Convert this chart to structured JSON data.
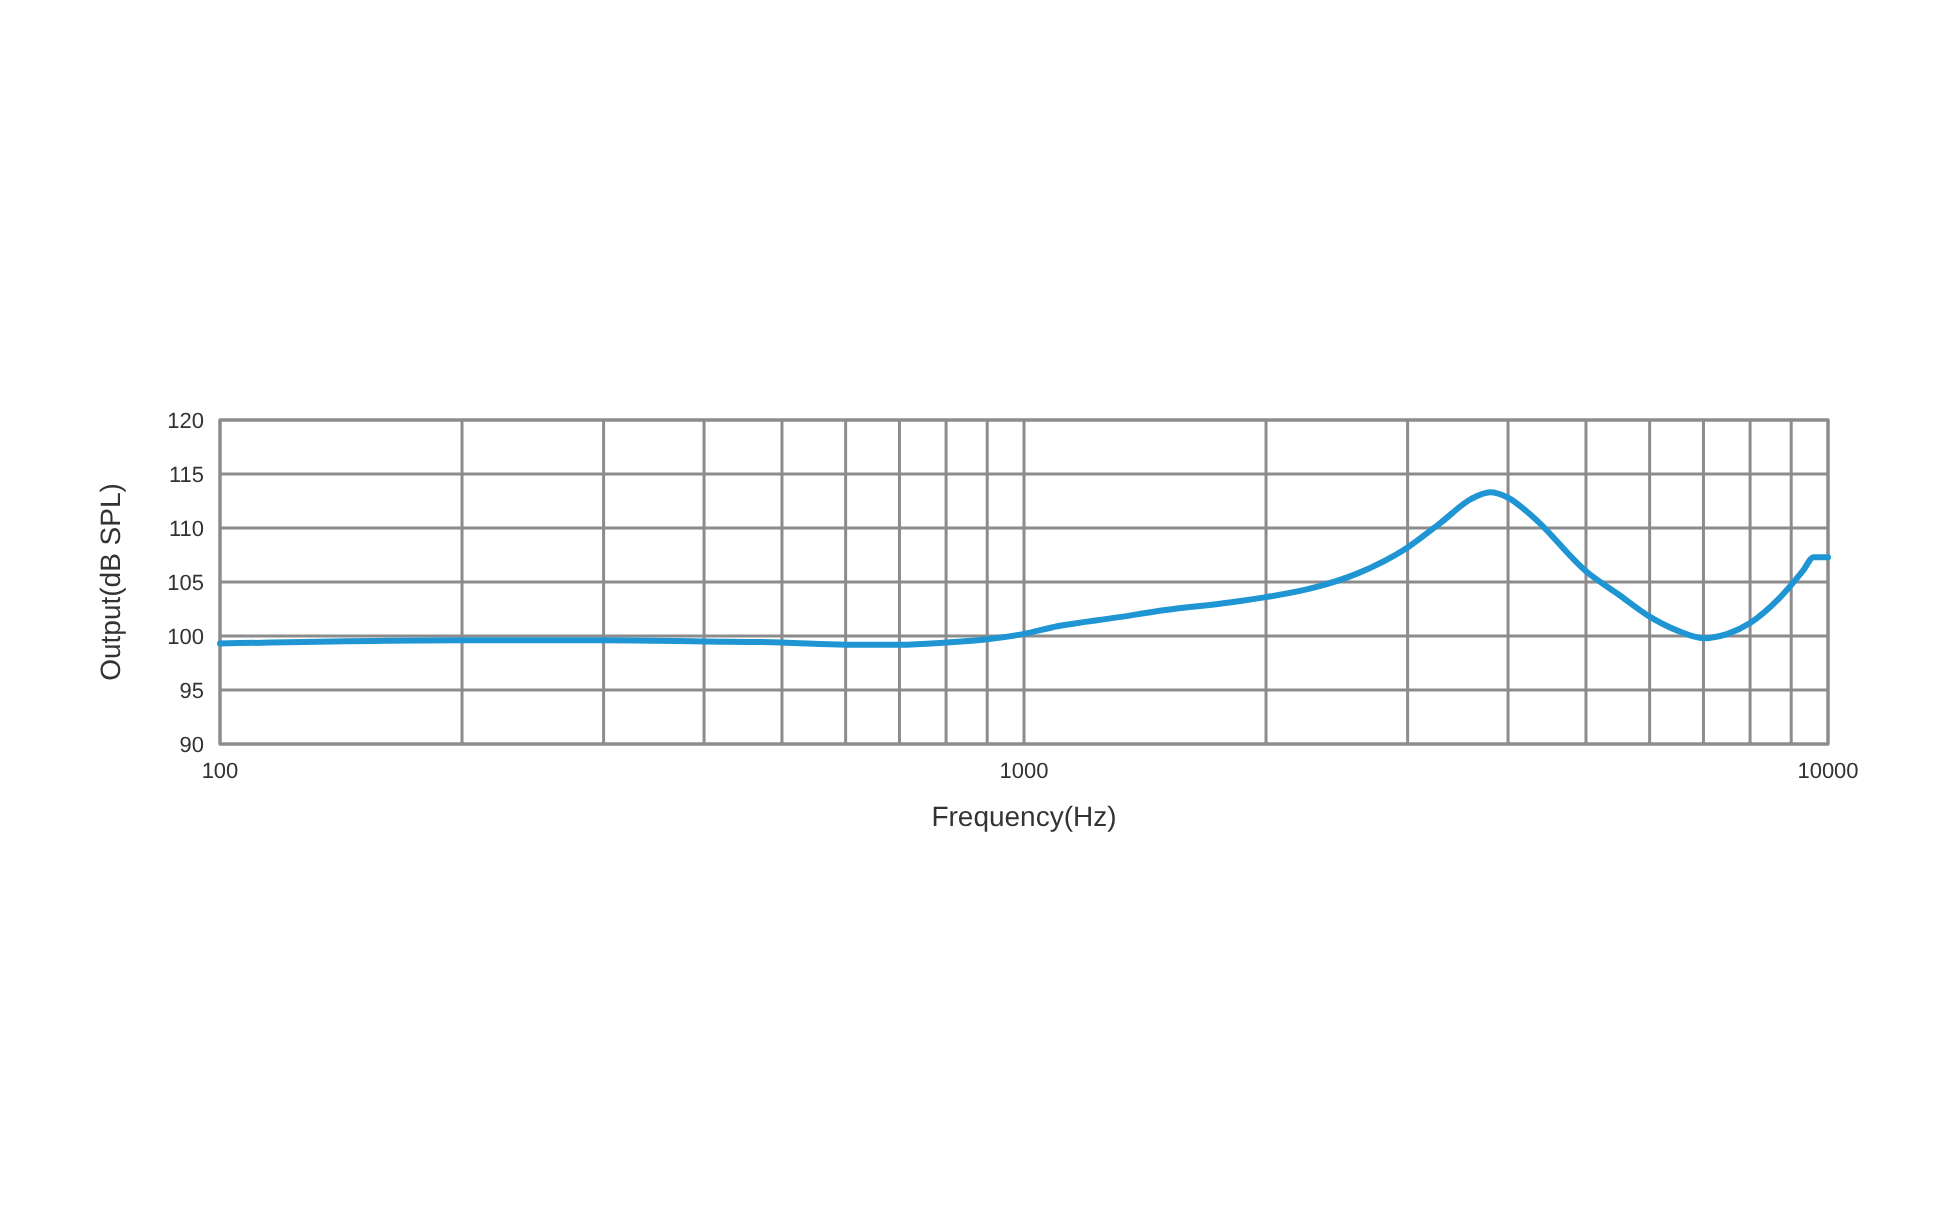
{
  "chart_data": {
    "type": "line",
    "xlabel": "Frequency(Hz)",
    "ylabel": "Output(dB SPL)",
    "log": "x",
    "grid": true,
    "marker": "none",
    "line_style": "solid",
    "xlim": [
      100,
      10000
    ],
    "ylim": [
      90,
      120
    ],
    "xticks": [
      100,
      {
        "value": 200,
        "label": null
      },
      {
        "value": 300,
        "label": null
      },
      {
        "value": 400,
        "label": null
      },
      {
        "value": 500,
        "label": null
      },
      {
        "value": 600,
        "label": null
      },
      {
        "value": 700,
        "label": null
      },
      {
        "value": 800,
        "label": null
      },
      {
        "value": 900,
        "label": null
      },
      1000,
      {
        "value": 2000,
        "label": null
      },
      {
        "value": 3000,
        "label": null
      },
      {
        "value": 4000,
        "label": null
      },
      {
        "value": 5000,
        "label": null
      },
      {
        "value": 6000,
        "label": null
      },
      {
        "value": 7000,
        "label": null
      },
      {
        "value": 8000,
        "label": null
      },
      {
        "value": 9000,
        "label": null
      },
      10000
    ],
    "yticks": [
      90,
      95,
      100,
      105,
      110,
      115,
      120
    ],
    "x": [
      100,
      200,
      300,
      400,
      500,
      600,
      700,
      800,
      900,
      1000,
      1100,
      1300,
      1500,
      1800,
      2000,
      2300,
      2600,
      3000,
      3300,
      3600,
      3800,
      4000,
      4300,
      5000,
      5500,
      6000,
      6500,
      7000,
      7500,
      8000,
      8700,
      9300,
      9600,
      10000
    ],
    "series": [
      {
        "color": "#1f96d3",
        "values": [
          99.3,
          99.6,
          99.6,
          99.5,
          99.4,
          99.2,
          99.2,
          99.4,
          99.7,
          100.2,
          100.9,
          101.7,
          102.4,
          103.1,
          103.6,
          104.5,
          105.8,
          108.2,
          110.5,
          112.7,
          113.3,
          112.8,
          111,
          106,
          103.8,
          101.8,
          100.5,
          99.8,
          100.2,
          101.2,
          103.5,
          106,
          107.3,
          107.3
        ]
      }
    ]
  }
}
